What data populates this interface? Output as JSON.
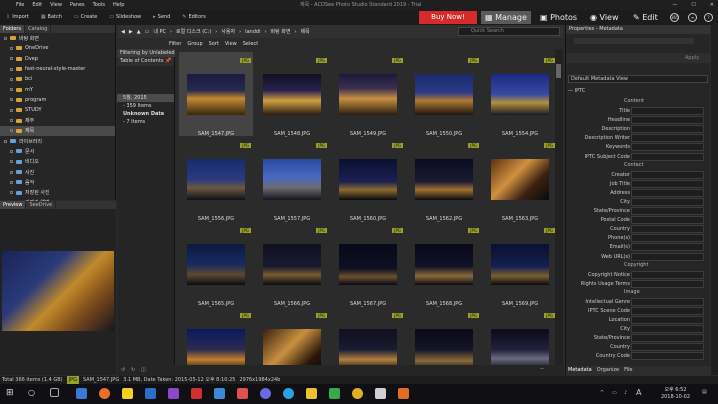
{
  "window": {
    "title": "제목 - ACDSee Photo Studio Standard 2019 - Trial",
    "menu": [
      "File",
      "Edit",
      "View",
      "Panes",
      "Tools",
      "Help"
    ]
  },
  "toolbar": {
    "items": [
      "Import",
      "Batch",
      "Create",
      "Slideshow",
      "Send",
      "Editors"
    ],
    "buy_now": "Buy Now!",
    "modes": [
      "Manage",
      "Photos",
      "View",
      "Edit"
    ],
    "circle_labels": [
      "365",
      "≡"
    ]
  },
  "left_panel": {
    "tabs": [
      "Folders",
      "Catalog"
    ],
    "folders": [
      "바탕 화면",
      "OneDrive",
      "Dvep",
      "fast-neural-style-master",
      "bci",
      "mY",
      "program",
      "STUDY",
      "제주",
      "제목",
      "라이브러리",
      "문서",
      "비디오",
      "사진",
      "음악",
      "저장된 사진",
      "카메라 앨범"
    ],
    "selected_folder": "제목"
  },
  "preview": {
    "tabs": [
      "Preview",
      "SeeDrive"
    ]
  },
  "breadcrumb": {
    "parts": [
      "내 PC",
      "로컬 디스크 (C:)",
      "사용자",
      "landdi",
      "바탕 화면",
      "제목"
    ],
    "search_placeholder": "Quick Search"
  },
  "filter": {
    "items": [
      "Filter",
      "Group",
      "Sort",
      "View",
      "Select"
    ],
    "filtered_label": "Filtering by Unlabeled"
  },
  "toc": {
    "header": "Table of Contents",
    "rows": [
      {
        "label": "5월, 2015",
        "count": "359 Items"
      },
      {
        "label": "Unknown Date",
        "count": "7 Items"
      }
    ]
  },
  "grid": {
    "tag": "JPG",
    "tiles": [
      "SAM_1547.JPG",
      "SAM_1548.JPG",
      "SAM_1549.JPG",
      "SAM_1550.JPG",
      "SAM_1554.JPG",
      "SAM_1556.JPG",
      "SAM_1557.JPG",
      "SAM_1560.JPG",
      "SAM_1562.JPG",
      "SAM_1563.JPG",
      "SAM_1565.JPG",
      "SAM_1566.JPG",
      "SAM_1567.JPG",
      "SAM_1568.JPG",
      "SAM_1569.JPG",
      "",
      "",
      "",
      "",
      ""
    ],
    "selected": "SAM_1547.JPG"
  },
  "properties": {
    "title": "Properties - Metadata",
    "view": "Default Metadata View",
    "apply": "Apply",
    "group": "IPTC",
    "sections": [
      {
        "name": "Content",
        "fields": [
          "Title",
          "Headline",
          "Description",
          "Description Writer",
          "Keywords",
          "IPTC Subject Code"
        ]
      },
      {
        "name": "Contact",
        "fields": [
          "Creator",
          "Job Title",
          "Address",
          "City",
          "State/Province",
          "Postal Code",
          "Country",
          "Phone(s)",
          "Email(s)",
          "Web URL(s)"
        ]
      },
      {
        "name": "Copyright",
        "fields": [
          "Copyright Notice",
          "Rights Usage Terms"
        ]
      },
      {
        "name": "Image",
        "fields": [
          "Intellectual Genre",
          "IPTC Scene Code",
          "Location",
          "City",
          "State/Province",
          "Country",
          "Country Code"
        ]
      }
    ],
    "bottom_tabs": [
      "Metadata",
      "Organize",
      "File"
    ]
  },
  "status": {
    "total": "Total 366 items  (1.4 GB)",
    "format": "JPG",
    "file": "SAM_1547.JPG",
    "size": "3.1 MB, Date Taken: 2015-05-12 오후 8:10:25",
    "dims": "2976x1984x24b"
  },
  "clock": {
    "time": "오후 6:52",
    "date": "2018-10-02"
  },
  "colors": {
    "buy_now": "#d72b2b",
    "jpg_tag": "#9aa02a",
    "folder": "#d7a632"
  }
}
